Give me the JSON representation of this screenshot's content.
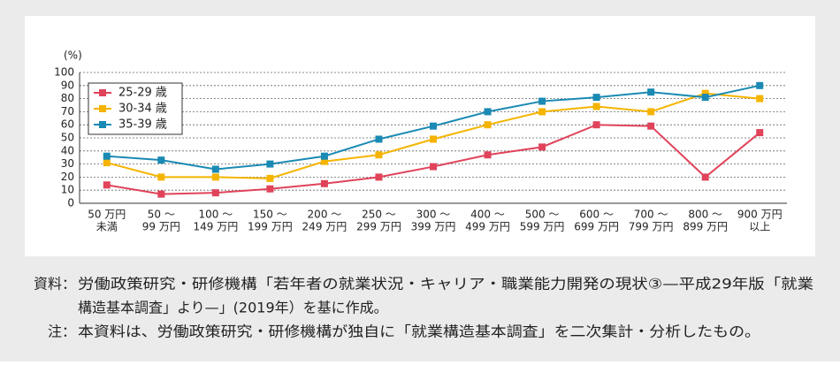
{
  "chart_data": {
    "type": "line",
    "y_label": "(%)",
    "categories": [
      [
        "50 万円",
        "未満"
      ],
      [
        "50 ～",
        "99 万円"
      ],
      [
        "100 ～",
        "149 万円"
      ],
      [
        "150 ～",
        "199 万円"
      ],
      [
        "200 ～",
        "249 万円"
      ],
      [
        "250 ～",
        "299 万円"
      ],
      [
        "300 ～",
        "399 万円"
      ],
      [
        "400 ～",
        "499 万円"
      ],
      [
        "500 ～",
        "599 万円"
      ],
      [
        "600 ～",
        "699 万円"
      ],
      [
        "700 ～",
        "799 万円"
      ],
      [
        "800 ～",
        "899 万円"
      ],
      [
        "900 万円",
        "以上"
      ]
    ],
    "series": [
      {
        "name": "25-29 歳",
        "color": "#e0435a",
        "values": [
          14,
          7,
          8,
          11,
          15,
          20,
          28,
          37,
          43,
          60,
          59,
          20,
          54
        ]
      },
      {
        "name": "30-34 歳",
        "color": "#f5b400",
        "values": [
          31,
          20,
          20,
          19,
          32,
          37,
          49,
          60,
          70,
          74,
          70,
          84,
          80
        ]
      },
      {
        "name": "35-39 歳",
        "color": "#1a8ab4",
        "values": [
          36,
          33,
          26,
          30,
          36,
          49,
          59,
          70,
          78,
          81,
          85,
          81,
          90
        ]
      }
    ],
    "ylim": [
      0,
      100
    ],
    "yticks": [
      0,
      10,
      20,
      30,
      40,
      50,
      60,
      70,
      80,
      90,
      100
    ],
    "grid": true,
    "legend": "upper left"
  },
  "notes": [
    {
      "label": "資料：",
      "lines": [
        "労働政策研究・研修機構「若年者の就業状況・キャリア・職業能力開発の現状③—平成29年版「就業",
        "構造基本調査」より—」(2019年）を基に作成。"
      ]
    },
    {
      "label": "注：",
      "lines": [
        "本資料は、労働政策研究・研修機構が独自に「就業構造基本調査」を二次集計・分析したもの。"
      ]
    }
  ]
}
